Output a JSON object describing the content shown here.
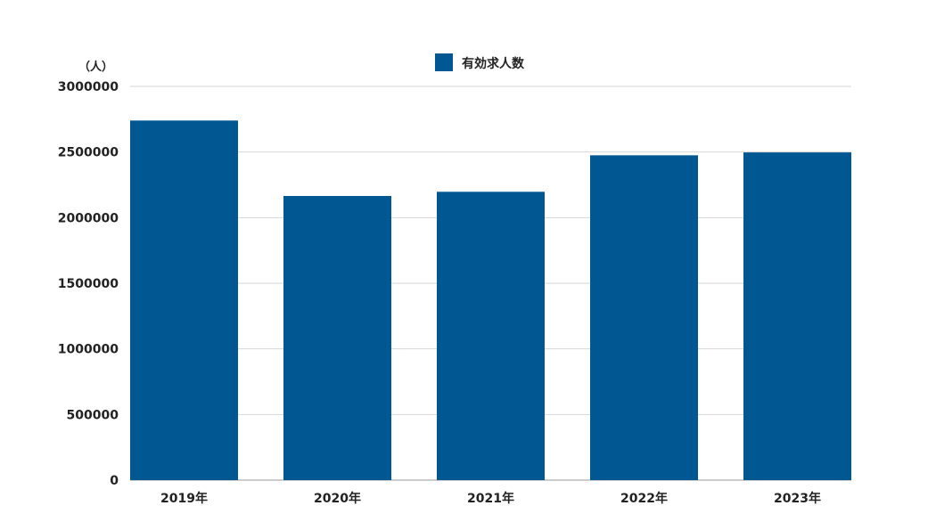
{
  "chart_data": {
    "type": "bar",
    "title": "",
    "unit_label": "（人）",
    "categories": [
      "2019年",
      "2020年",
      "2021年",
      "2022年",
      "2023年"
    ],
    "series": [
      {
        "name": "有効求人数",
        "values": [
          2740000,
          2165000,
          2197000,
          2475000,
          2497000
        ],
        "color": "#005792"
      }
    ],
    "ylim": [
      0,
      3000000
    ],
    "yticks": [
      0,
      500000,
      1000000,
      1500000,
      2000000,
      2500000,
      3000000
    ],
    "grid": true,
    "legend": "top-center"
  }
}
